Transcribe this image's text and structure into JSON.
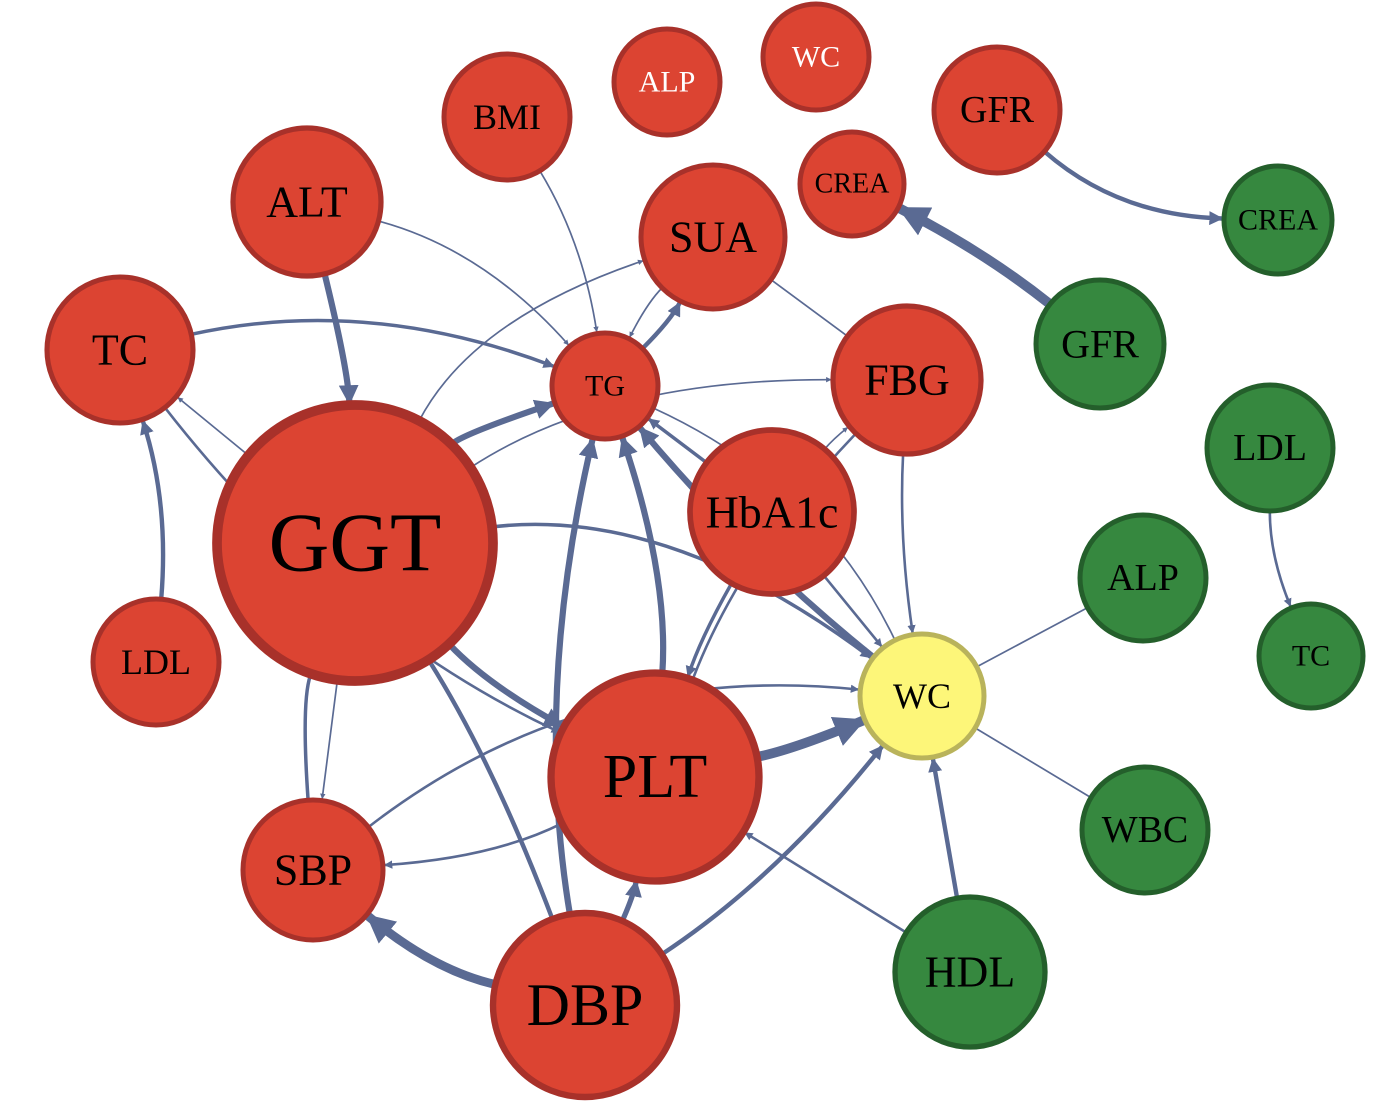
{
  "colors": {
    "red_fill": "#dc4432",
    "red_stroke": "#a8312a",
    "green_fill": "#36883f",
    "green_stroke": "#245f2b",
    "yellow_fill": "#fdf679",
    "yellow_stroke": "#b9b35b",
    "edge": "#5a6a93",
    "label_dark": "#000000",
    "label_light": "#ffffff"
  },
  "nodes": [
    {
      "id": "ggt",
      "label": "GGT",
      "group": "red"
    },
    {
      "id": "plt",
      "label": "PLT",
      "group": "red"
    },
    {
      "id": "dbp",
      "label": "DBP",
      "group": "red"
    },
    {
      "id": "hba1c",
      "label": "HbA1c",
      "group": "red"
    },
    {
      "id": "fbg",
      "label": "FBG",
      "group": "red"
    },
    {
      "id": "sua",
      "label": "SUA",
      "group": "red"
    },
    {
      "id": "tc",
      "label": "TC",
      "group": "red"
    },
    {
      "id": "alt",
      "label": "ALT",
      "group": "red"
    },
    {
      "id": "sbp",
      "label": "SBP",
      "group": "red"
    },
    {
      "id": "tg",
      "label": "TG",
      "group": "red"
    },
    {
      "id": "ldl",
      "label": "LDL",
      "group": "red"
    },
    {
      "id": "bmi",
      "label": "BMI",
      "group": "red"
    },
    {
      "id": "alp",
      "label": "ALP",
      "group": "red"
    },
    {
      "id": "wc_top",
      "label": "WC",
      "group": "red"
    },
    {
      "id": "gfr",
      "label": "GFR",
      "group": "red"
    },
    {
      "id": "crea",
      "label": "CREA",
      "group": "red"
    },
    {
      "id": "wc",
      "label": "WC",
      "group": "yellow"
    },
    {
      "id": "g_crea",
      "label": "CREA",
      "group": "green"
    },
    {
      "id": "g_gfr",
      "label": "GFR",
      "group": "green"
    },
    {
      "id": "g_ldl",
      "label": "LDL",
      "group": "green"
    },
    {
      "id": "g_alp",
      "label": "ALP",
      "group": "green"
    },
    {
      "id": "g_tc",
      "label": "TC",
      "group": "green"
    },
    {
      "id": "g_wbc",
      "label": "WBC",
      "group": "green"
    },
    {
      "id": "g_hdl",
      "label": "HDL",
      "group": "green"
    }
  ],
  "edges": [
    {
      "from": "gfr",
      "to": "g_crea",
      "directed": true,
      "weight": 4
    },
    {
      "from": "g_gfr",
      "to": "crea",
      "directed": true,
      "weight": 10
    },
    {
      "from": "g_ldl",
      "to": "g_tc",
      "directed": true,
      "weight": 2
    },
    {
      "from": "g_alp",
      "to": "wc",
      "directed": false,
      "weight": 1
    },
    {
      "from": "g_wbc",
      "to": "wc",
      "directed": false,
      "weight": 1
    },
    {
      "from": "g_hdl",
      "to": "wc",
      "directed": true,
      "weight": 4
    },
    {
      "from": "g_hdl",
      "to": "plt",
      "directed": true,
      "weight": 2
    },
    {
      "from": "dbp",
      "to": "sbp",
      "directed": true,
      "weight": 9
    },
    {
      "from": "dbp",
      "to": "tg",
      "directed": true,
      "weight": 6
    },
    {
      "from": "dbp",
      "to": "plt",
      "directed": true,
      "weight": 5
    },
    {
      "from": "dbp",
      "to": "wc",
      "directed": true,
      "weight": 4
    },
    {
      "from": "dbp",
      "to": "ggt",
      "directed": false,
      "weight": 4
    },
    {
      "from": "plt",
      "to": "wc",
      "directed": true,
      "weight": 10
    },
    {
      "from": "plt",
      "to": "sbp",
      "directed": true,
      "weight": 2
    },
    {
      "from": "plt",
      "to": "tg",
      "directed": true,
      "weight": 6
    },
    {
      "from": "ggt",
      "to": "tg",
      "directed": true,
      "weight": 6
    },
    {
      "from": "ggt",
      "to": "plt",
      "directed": true,
      "weight": 6
    },
    {
      "from": "ggt",
      "to": "wc",
      "directed": true,
      "weight": 3
    },
    {
      "from": "ggt",
      "to": "tc",
      "directed": true,
      "weight": 1
    },
    {
      "from": "ggt",
      "to": "sbp",
      "directed": true,
      "weight": 1
    },
    {
      "from": "ggt",
      "to": "sua",
      "directed": true,
      "weight": 1
    },
    {
      "from": "sbp",
      "to": "wc",
      "directed": true,
      "weight": 2
    },
    {
      "from": "sbp",
      "to": "ggt",
      "directed": false,
      "weight": 3
    },
    {
      "from": "alt",
      "to": "ggt",
      "directed": true,
      "weight": 6
    },
    {
      "from": "alt",
      "to": "tg",
      "directed": true,
      "weight": 1
    },
    {
      "from": "tc",
      "to": "tg",
      "directed": true,
      "weight": 3
    },
    {
      "from": "tc",
      "to": "plt",
      "directed": true,
      "weight": 2
    },
    {
      "from": "ldl",
      "to": "tc",
      "directed": true,
      "weight": 4
    },
    {
      "from": "bmi",
      "to": "tg",
      "directed": true,
      "weight": 1
    },
    {
      "from": "sua",
      "to": "tg",
      "directed": true,
      "weight": 1
    },
    {
      "from": "tg",
      "to": "sua",
      "directed": true,
      "weight": 4
    },
    {
      "from": "sua",
      "to": "fbg",
      "directed": false,
      "weight": 1
    },
    {
      "from": "tg",
      "to": "wc",
      "directed": false,
      "weight": 1
    },
    {
      "from": "fbg",
      "to": "wc",
      "directed": true,
      "weight": 2
    },
    {
      "from": "fbg",
      "to": "plt",
      "directed": false,
      "weight": 2
    },
    {
      "from": "hba1c",
      "to": "fbg",
      "directed": true,
      "weight": 1
    },
    {
      "from": "hba1c",
      "to": "wc",
      "directed": true,
      "weight": 2
    },
    {
      "from": "hba1c",
      "to": "tg",
      "directed": true,
      "weight": 3
    },
    {
      "from": "hba1c",
      "to": "plt",
      "directed": true,
      "weight": 3
    },
    {
      "from": "wc",
      "to": "tg",
      "directed": true,
      "weight": 6
    },
    {
      "from": "ggt",
      "to": "fbg",
      "directed": true,
      "weight": 1
    }
  ]
}
